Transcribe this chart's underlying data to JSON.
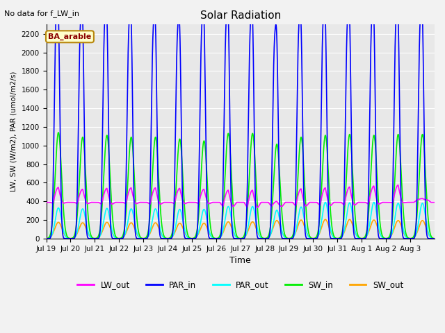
{
  "title": "Solar Radiation",
  "xlabel": "Time",
  "ylabel": "LW, SW (W/m2), PAR (umol/m2/s)",
  "note": "No data for f_LW_in",
  "label_text": "BA_arable",
  "ylim": [
    0,
    2300
  ],
  "yticks": [
    0,
    200,
    400,
    600,
    800,
    1000,
    1200,
    1400,
    1600,
    1800,
    2000,
    2200
  ],
  "num_days": 16,
  "fig_bg": "#f2f2f2",
  "plot_bg": "#e8e8e8",
  "series": {
    "LW_out": {
      "color": "#ff00ff",
      "lw": 1.2
    },
    "PAR_in": {
      "color": "#0000ff",
      "lw": 1.2
    },
    "PAR_out": {
      "color": "#00ffff",
      "lw": 1.2
    },
    "SW_in": {
      "color": "#00ee00",
      "lw": 1.2
    },
    "SW_out": {
      "color": "#ffa500",
      "lw": 1.2
    }
  },
  "xtick_labels": [
    "Jul 19",
    "Jul 20",
    "Jul 21",
    "Jul 22",
    "Jul 23",
    "Jul 24",
    "Jul 25",
    "Jul 26",
    "Jul 27",
    "Jul 28",
    "Jul 29",
    "Jul 30",
    "Jul 31",
    "Aug 1",
    "Aug 2",
    "Aug 3"
  ],
  "xtick_positions": [
    0,
    1,
    2,
    3,
    4,
    5,
    6,
    7,
    8,
    9,
    10,
    11,
    12,
    13,
    14,
    15
  ],
  "PAR_in_peak1": [
    2100,
    2050,
    2070,
    2050,
    2000,
    1960,
    2060,
    2100,
    2080,
    1860,
    1980,
    2050,
    2050,
    2050,
    2060,
    2070
  ],
  "PAR_in_peak2": [
    1820,
    1720,
    1750,
    1700,
    1680,
    1650,
    1680,
    1700,
    1670,
    1620,
    1720,
    1760,
    1750,
    1760,
    1760,
    1760
  ],
  "SW_in_peaks": [
    1140,
    1090,
    1110,
    1090,
    1090,
    1070,
    1050,
    1130,
    1130,
    1015,
    1090,
    1110,
    1120,
    1110,
    1120,
    1120
  ],
  "PAR_out_peaks": [
    330,
    320,
    325,
    320,
    320,
    315,
    315,
    345,
    345,
    305,
    340,
    390,
    385,
    390,
    380,
    380
  ],
  "SW_out_peaks": [
    175,
    170,
    175,
    170,
    170,
    165,
    165,
    180,
    180,
    195,
    200,
    205,
    205,
    200,
    195,
    195
  ],
  "LW_out_night": 390,
  "LW_out_day_max": [
    550,
    530,
    540,
    545,
    545,
    540,
    530,
    520,
    520,
    400,
    535,
    545,
    555,
    565,
    575,
    430
  ],
  "LW_out_day_min": [
    380,
    375,
    370,
    375,
    370,
    375,
    375,
    345,
    335,
    345,
    350,
    355,
    360,
    370,
    385,
    415
  ]
}
